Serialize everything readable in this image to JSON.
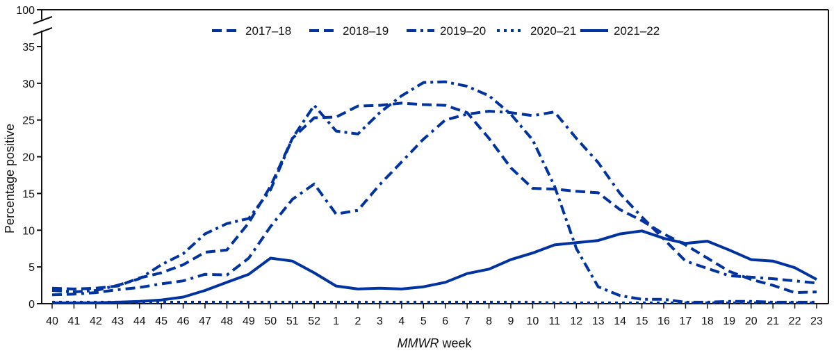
{
  "chart_data": {
    "type": "line",
    "title": "",
    "xlabel_italic": "MMWR",
    "xlabel_rest": " week",
    "ylabel": "Percentage positive",
    "ylim": [
      0,
      35
    ],
    "y_break_top": 100,
    "y_ticks": [
      0,
      5,
      10,
      15,
      20,
      25,
      30,
      35,
      100
    ],
    "grid": false,
    "legend_position": "top-center",
    "color": "#0033a0",
    "categories": [
      "40",
      "41",
      "42",
      "43",
      "44",
      "45",
      "46",
      "47",
      "48",
      "49",
      "50",
      "51",
      "52",
      "1",
      "2",
      "3",
      "4",
      "5",
      "6",
      "7",
      "8",
      "9",
      "10",
      "11",
      "12",
      "13",
      "14",
      "15",
      "16",
      "17",
      "18",
      "19",
      "20",
      "21",
      "22",
      "23"
    ],
    "series": [
      {
        "name": "2017–18",
        "style": "dashed",
        "values": [
          2.1,
          2.0,
          2.1,
          2.4,
          3.5,
          4.2,
          5.3,
          7.0,
          7.3,
          11.0,
          16.0,
          22.5,
          25.3,
          25.4,
          26.9,
          27.0,
          27.3,
          27.1,
          27.0,
          26.0,
          22.5,
          18.5,
          15.7,
          15.6,
          15.3,
          15.1,
          12.8,
          11.3,
          9.5,
          8.0,
          6.2,
          4.4,
          3.3,
          2.5,
          1.5,
          1.6
        ]
      },
      {
        "name": "2018–19",
        "style": "long-dash-dash-dot",
        "values": [
          1.2,
          1.3,
          1.5,
          1.9,
          2.2,
          2.7,
          3.1,
          4.0,
          3.9,
          6.2,
          10.5,
          14.2,
          16.3,
          12.2,
          12.7,
          16.2,
          19.3,
          22.4,
          25.0,
          25.8,
          26.2,
          26.0,
          25.6,
          26.1,
          22.5,
          19.2,
          15.0,
          11.8,
          8.8,
          5.8,
          4.8,
          3.8,
          3.6,
          3.4,
          3.1,
          2.8
        ]
      },
      {
        "name": "2019–20",
        "style": "dash-dot",
        "values": [
          1.8,
          1.6,
          1.8,
          2.5,
          3.4,
          5.3,
          6.8,
          9.5,
          10.9,
          11.6,
          15.5,
          22.5,
          27.0,
          23.5,
          23.1,
          26.0,
          28.3,
          30.1,
          30.2,
          29.6,
          28.3,
          25.8,
          22.3,
          16.0,
          7.5,
          2.3,
          1.1,
          0.6,
          0.6,
          0.2,
          0.2,
          0.3,
          0.3,
          0.2,
          0.2,
          0.2
        ]
      },
      {
        "name": "2020–21",
        "style": "dotted",
        "values": [
          0.2,
          0.2,
          0.2,
          0.2,
          0.2,
          0.2,
          0.2,
          0.2,
          0.2,
          0.2,
          0.2,
          0.2,
          0.2,
          0.2,
          0.2,
          0.2,
          0.2,
          0.2,
          0.2,
          0.2,
          0.2,
          0.2,
          0.2,
          0.1,
          0.1,
          0.1,
          0.1,
          0.1,
          0.1,
          0.1,
          0.1,
          0.1,
          0.1,
          0.1,
          0.1,
          0.1
        ]
      },
      {
        "name": "2021–22",
        "style": "solid",
        "values": [
          0.1,
          0.1,
          0.1,
          0.2,
          0.3,
          0.5,
          0.9,
          1.8,
          2.9,
          4.0,
          6.2,
          5.8,
          4.2,
          2.4,
          2.0,
          2.1,
          2.0,
          2.3,
          2.9,
          4.1,
          4.7,
          6.0,
          6.9,
          8.0,
          8.3,
          8.6,
          9.5,
          9.9,
          8.9,
          8.2,
          8.5,
          7.3,
          6.0,
          5.8,
          4.9,
          3.3
        ]
      }
    ]
  }
}
